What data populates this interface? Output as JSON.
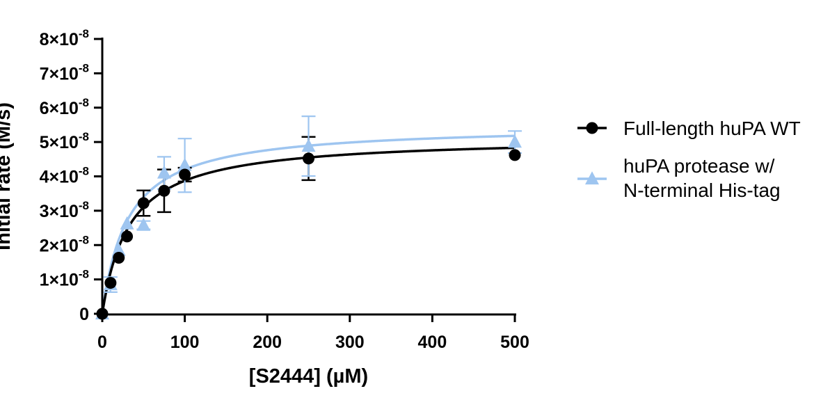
{
  "chart_data": {
    "type": "scatter",
    "xlabel": "[S2444] (µM)",
    "ylabel": "Initial rate (M/s)",
    "xlim": [
      0,
      500
    ],
    "ylim": [
      0,
      8e-08
    ],
    "x_ticks": [
      {
        "value": 0,
        "label": "0"
      },
      {
        "value": 100,
        "label": "100"
      },
      {
        "value": 200,
        "label": "200"
      },
      {
        "value": 300,
        "label": "300"
      },
      {
        "value": 400,
        "label": "400"
      },
      {
        "value": 500,
        "label": "500"
      }
    ],
    "y_ticks": [
      {
        "value": 0,
        "mantissa": "0",
        "exponent": ""
      },
      {
        "value": 1e-08,
        "mantissa": "1×10",
        "exponent": "-8"
      },
      {
        "value": 2e-08,
        "mantissa": "2×10",
        "exponent": "-8"
      },
      {
        "value": 3e-08,
        "mantissa": "3×10",
        "exponent": "-8"
      },
      {
        "value": 4e-08,
        "mantissa": "4×10",
        "exponent": "-8"
      },
      {
        "value": 5e-08,
        "mantissa": "5×10",
        "exponent": "-8"
      },
      {
        "value": 6e-08,
        "mantissa": "6×10",
        "exponent": "-8"
      },
      {
        "value": 7e-08,
        "mantissa": "7×10",
        "exponent": "-8"
      },
      {
        "value": 8e-08,
        "mantissa": "8×10",
        "exponent": "-8"
      }
    ],
    "grid": false,
    "legend_position": "right",
    "series": [
      {
        "name": "Full-length huPA WT",
        "color": "#000000",
        "marker": "circle",
        "x": [
          0,
          10,
          20,
          30,
          50,
          75,
          100,
          250,
          500
        ],
        "y": [
          0,
          9e-09,
          1.63e-08,
          2.25e-08,
          3.22e-08,
          3.58e-08,
          4.05e-08,
          4.52e-08,
          4.62e-08
        ],
        "err": [
          0,
          0,
          0,
          0,
          3.7e-09,
          6.2e-09,
          2e-09,
          6.3e-09,
          0
        ],
        "fit": {
          "model": "Michaelis-Menten",
          "vmax": 5.15e-08,
          "km": 33
        }
      },
      {
        "name": "huPA protease w/ N-terminal His-tag",
        "legend_lines": [
          "huPA protease w/",
          "N-terminal His-tag"
        ],
        "color": "#9ec5f0",
        "marker": "triangle",
        "x": [
          0,
          10,
          20,
          30,
          50,
          75,
          100,
          250,
          500
        ],
        "y": [
          0,
          8.5e-09,
          1.85e-08,
          2.62e-08,
          2.58e-08,
          4.1e-08,
          4.32e-08,
          4.88e-08,
          5e-08
        ],
        "err": [
          0,
          2.2e-09,
          0,
          0,
          1.2e-09,
          4.7e-09,
          7.8e-09,
          8.7e-09,
          3.2e-09
        ],
        "fit": {
          "model": "Michaelis-Menten",
          "vmax": 5.5e-08,
          "km": 31
        }
      }
    ]
  }
}
